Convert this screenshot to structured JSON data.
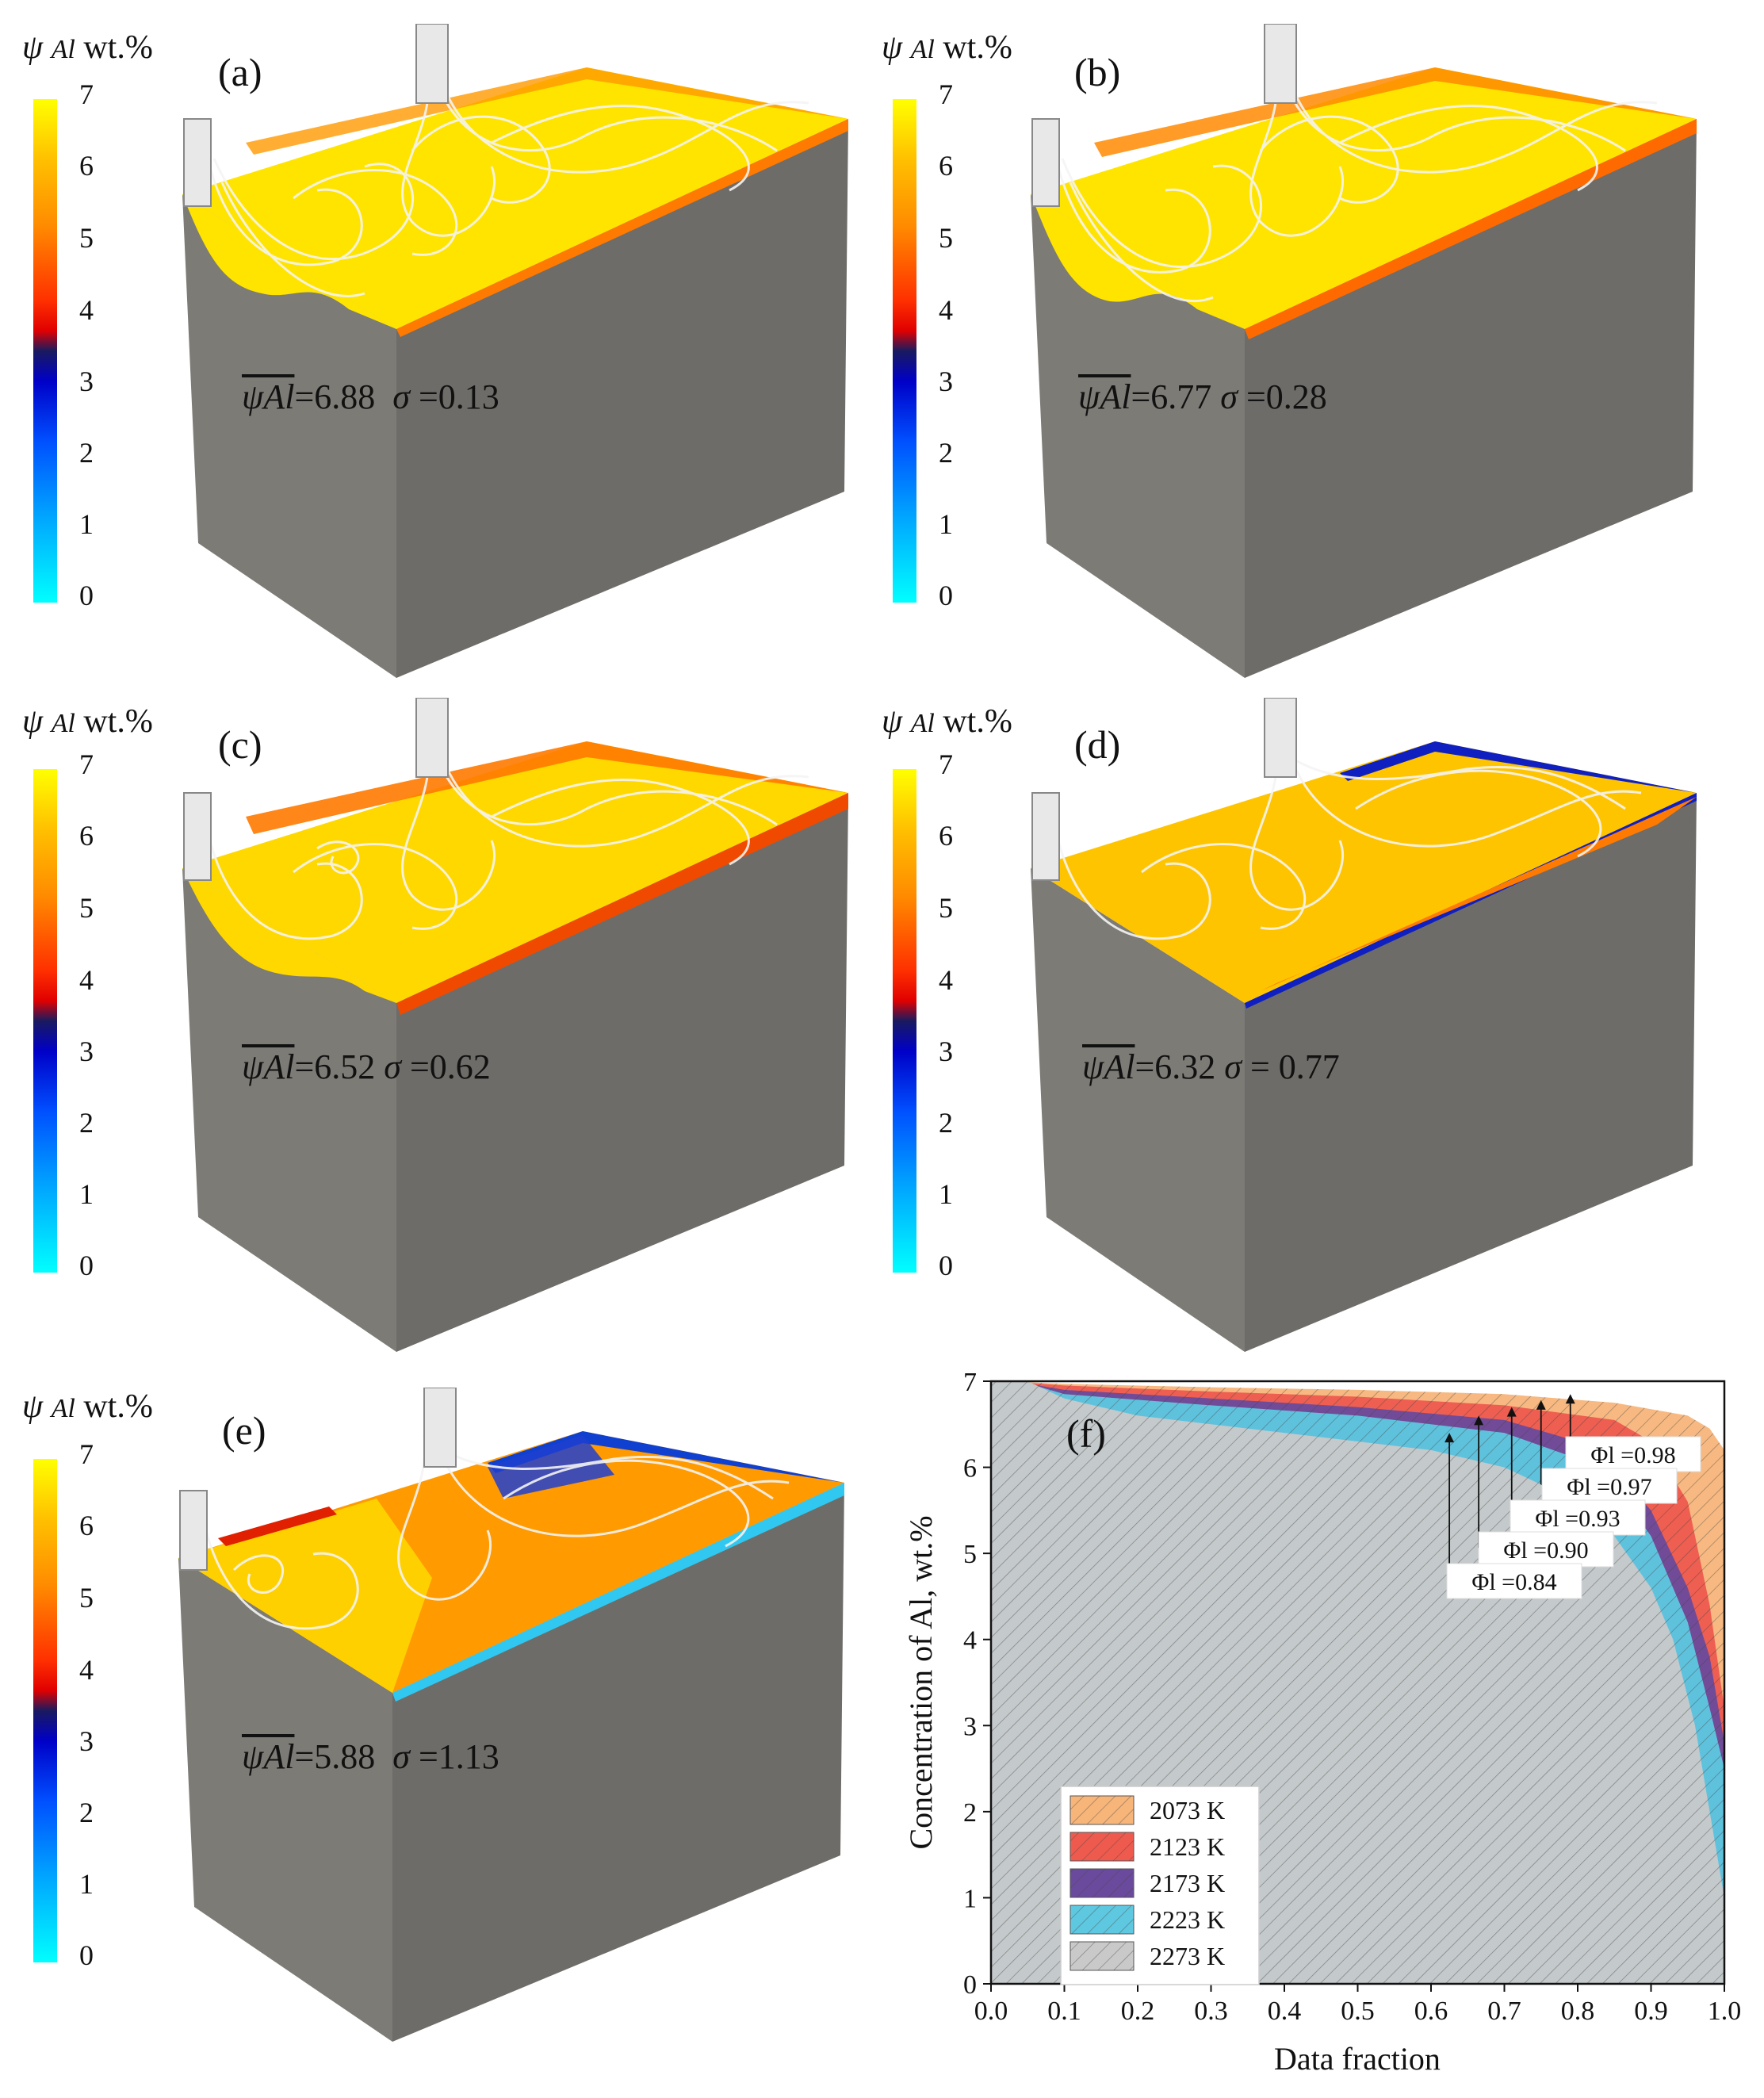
{
  "colorbar": {
    "symbol": "ψ",
    "species": "Al",
    "unit": "wt.%",
    "ticks": [
      "7",
      "6",
      "5",
      "4",
      "3",
      "2",
      "1",
      "0"
    ]
  },
  "panels": [
    {
      "label": "(a)",
      "mean_label": "ψAl",
      "mean": "=6.88",
      "sigma_label": "σ",
      "sigma": "=0.13"
    },
    {
      "label": "(b)",
      "mean_label": "ψAl",
      "mean": "=6.77",
      "sigma_label": "σ",
      "sigma": "=0.28"
    },
    {
      "label": "(c)",
      "mean_label": "ψAl",
      "mean": "=6.52",
      "sigma_label": "σ",
      "sigma": "=0.62"
    },
    {
      "label": "(d)",
      "mean_label": "ψAl",
      "mean": "=6.32",
      "sigma_label": "σ",
      "sigma": "= 0.77"
    },
    {
      "label": "(e)",
      "mean_label": "ψAl",
      "mean": "=5.88",
      "sigma_label": "σ",
      "sigma": "=1.13"
    }
  ],
  "colors": {
    "block_front": "#7d7b76",
    "block_side": "#6e6c68",
    "melt_yellow": "#ffe400",
    "melt_orange": "#ff8a00",
    "melt_red": "#e82000",
    "melt_blue": "#1020c0"
  },
  "chart_data": {
    "type": "area",
    "panel_label": "(f)",
    "xlabel": "Data fraction",
    "ylabel": "Concentration of Al, wt.%",
    "xlim": [
      0,
      1
    ],
    "ylim": [
      0,
      7
    ],
    "xticks": [
      "0.0",
      "0.1",
      "0.2",
      "0.3",
      "0.4",
      "0.5",
      "0.6",
      "0.7",
      "0.8",
      "0.9",
      "1.0"
    ],
    "yticks": [
      "0",
      "1",
      "2",
      "3",
      "4",
      "5",
      "6",
      "7"
    ],
    "legend_position": "lower-left",
    "series": [
      {
        "name": "2073 K",
        "color": "#f7b57a",
        "x": [
          0.02,
          0.1,
          0.3,
          0.5,
          0.7,
          0.85,
          0.95,
          0.98,
          1.0
        ],
        "y": [
          7.0,
          6.97,
          6.93,
          6.9,
          6.85,
          6.75,
          6.6,
          6.45,
          6.2
        ]
      },
      {
        "name": "2123 K",
        "color": "#ee5a4e",
        "x": [
          0.02,
          0.1,
          0.3,
          0.5,
          0.7,
          0.85,
          0.9,
          0.95,
          0.98,
          1.0
        ],
        "y": [
          7.0,
          6.95,
          6.88,
          6.82,
          6.72,
          6.55,
          6.3,
          5.6,
          4.4,
          3.2
        ]
      },
      {
        "name": "2173 K",
        "color": "#6a4a9c",
        "x": [
          0.03,
          0.1,
          0.3,
          0.5,
          0.7,
          0.8,
          0.85,
          0.9,
          0.95,
          0.98,
          1.0
        ],
        "y": [
          7.0,
          6.9,
          6.8,
          6.7,
          6.55,
          6.3,
          6.0,
          5.5,
          4.6,
          3.8,
          2.8
        ]
      },
      {
        "name": "2223 K",
        "color": "#5ec8e0",
        "x": [
          0.04,
          0.1,
          0.3,
          0.5,
          0.7,
          0.8,
          0.85,
          0.9,
          0.95,
          0.98,
          1.0
        ],
        "y": [
          7.0,
          6.85,
          6.72,
          6.6,
          6.4,
          6.1,
          5.8,
          5.2,
          4.2,
          3.2,
          2.5
        ]
      },
      {
        "name": "2273 K",
        "color": "#c9c9c9",
        "x": [
          0.05,
          0.1,
          0.2,
          0.3,
          0.4,
          0.5,
          0.6,
          0.7,
          0.8,
          0.85,
          0.9,
          0.93,
          0.96,
          0.98,
          1.0
        ],
        "y": [
          7.0,
          6.8,
          6.6,
          6.5,
          6.4,
          6.3,
          6.2,
          6.0,
          5.6,
          5.2,
          4.6,
          4.0,
          3.0,
          2.0,
          1.0
        ]
      }
    ],
    "annotations": [
      {
        "text": "Φl =0.98",
        "arrow_x": 0.79,
        "arrow_y": 6.85
      },
      {
        "text": "Φl =0.97",
        "arrow_x": 0.75,
        "arrow_y": 6.78
      },
      {
        "text": "Φl =0.93",
        "arrow_x": 0.71,
        "arrow_y": 6.7
      },
      {
        "text": "Φl =0.90",
        "arrow_x": 0.665,
        "arrow_y": 6.6
      },
      {
        "text": "Φl =0.84",
        "arrow_x": 0.625,
        "arrow_y": 6.4
      }
    ]
  }
}
